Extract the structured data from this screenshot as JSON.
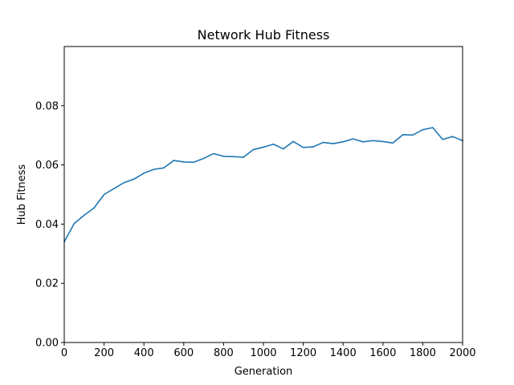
{
  "chart_data": {
    "type": "line",
    "title": "Network Hub Fitness",
    "xlabel": "Generation",
    "ylabel": "Hub Fitness",
    "xlim": [
      0,
      2000
    ],
    "ylim": [
      0,
      0.1
    ],
    "xticks": [
      0,
      200,
      400,
      600,
      800,
      1000,
      1200,
      1400,
      1600,
      1800,
      2000
    ],
    "xtick_labels": [
      "0",
      "200",
      "400",
      "600",
      "800",
      "1000",
      "1200",
      "1400",
      "1600",
      "1800",
      "2000"
    ],
    "yticks": [
      0,
      0.02,
      0.04,
      0.06,
      0.08
    ],
    "ytick_labels": [
      "0.00",
      "0.02",
      "0.04",
      "0.06",
      "0.08"
    ],
    "grid": false,
    "series": [
      {
        "color": "#1f77b4",
        "x": [
          0,
          50,
          100,
          150,
          200,
          250,
          300,
          350,
          400,
          450,
          500,
          550,
          600,
          650,
          700,
          750,
          800,
          850,
          900,
          950,
          1000,
          1050,
          1100,
          1150,
          1200,
          1250,
          1300,
          1350,
          1400,
          1450,
          1500,
          1550,
          1600,
          1650,
          1700,
          1750,
          1800,
          1850,
          1900,
          1950,
          2000
        ],
        "y": [
          0.034,
          0.0402,
          0.043,
          0.0455,
          0.05,
          0.052,
          0.054,
          0.0552,
          0.0572,
          0.0585,
          0.059,
          0.0615,
          0.061,
          0.0609,
          0.0622,
          0.0638,
          0.0629,
          0.0628,
          0.0626,
          0.0652,
          0.066,
          0.067,
          0.0654,
          0.0679,
          0.0659,
          0.0661,
          0.0676,
          0.0672,
          0.0678,
          0.0688,
          0.0678,
          0.0682,
          0.0679,
          0.0674,
          0.0702,
          0.0701,
          0.0719,
          0.0726,
          0.0686,
          0.0696,
          0.0682
        ]
      }
    ]
  }
}
